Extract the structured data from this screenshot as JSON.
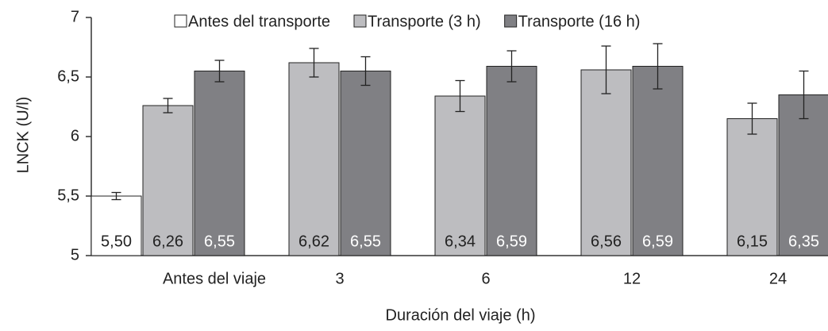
{
  "chart_data": {
    "type": "bar",
    "y_label": "LNCK (U/l)",
    "x_label": "Duración del viaje (h)",
    "categories": [
      "Antes del viaje",
      "3",
      "6",
      "12",
      "24"
    ],
    "series": [
      {
        "name": "Antes del transporte",
        "color": "#ffffff",
        "values": [
          5.5,
          null,
          null,
          null,
          null
        ],
        "errors": [
          0.03,
          null,
          null,
          null,
          null
        ],
        "value_labels": [
          "5,50",
          null,
          null,
          null,
          null
        ]
      },
      {
        "name": "Transporte (3 h)",
        "color": "#bdbdc0",
        "values": [
          6.26,
          6.62,
          6.34,
          6.56,
          6.15
        ],
        "errors": [
          0.06,
          0.12,
          0.13,
          0.2,
          0.13
        ],
        "value_labels": [
          "6,26",
          "6,62",
          "6,34",
          "6,56",
          "6,15"
        ]
      },
      {
        "name": "Transporte (16 h)",
        "color": "#808084",
        "values": [
          6.55,
          6.55,
          6.59,
          6.59,
          6.35
        ],
        "errors": [
          0.09,
          0.12,
          0.13,
          0.19,
          0.2
        ],
        "value_labels": [
          "6,55",
          "6,55",
          "6,59",
          "6,59",
          "6,35"
        ]
      }
    ],
    "ylim": [
      5,
      7
    ],
    "yticks": [
      5,
      {
        "value": 5.5,
        "label": "5,5"
      },
      6,
      {
        "value": 6.5,
        "label": "6,5"
      },
      7
    ],
    "legend": "top",
    "grid": false
  }
}
